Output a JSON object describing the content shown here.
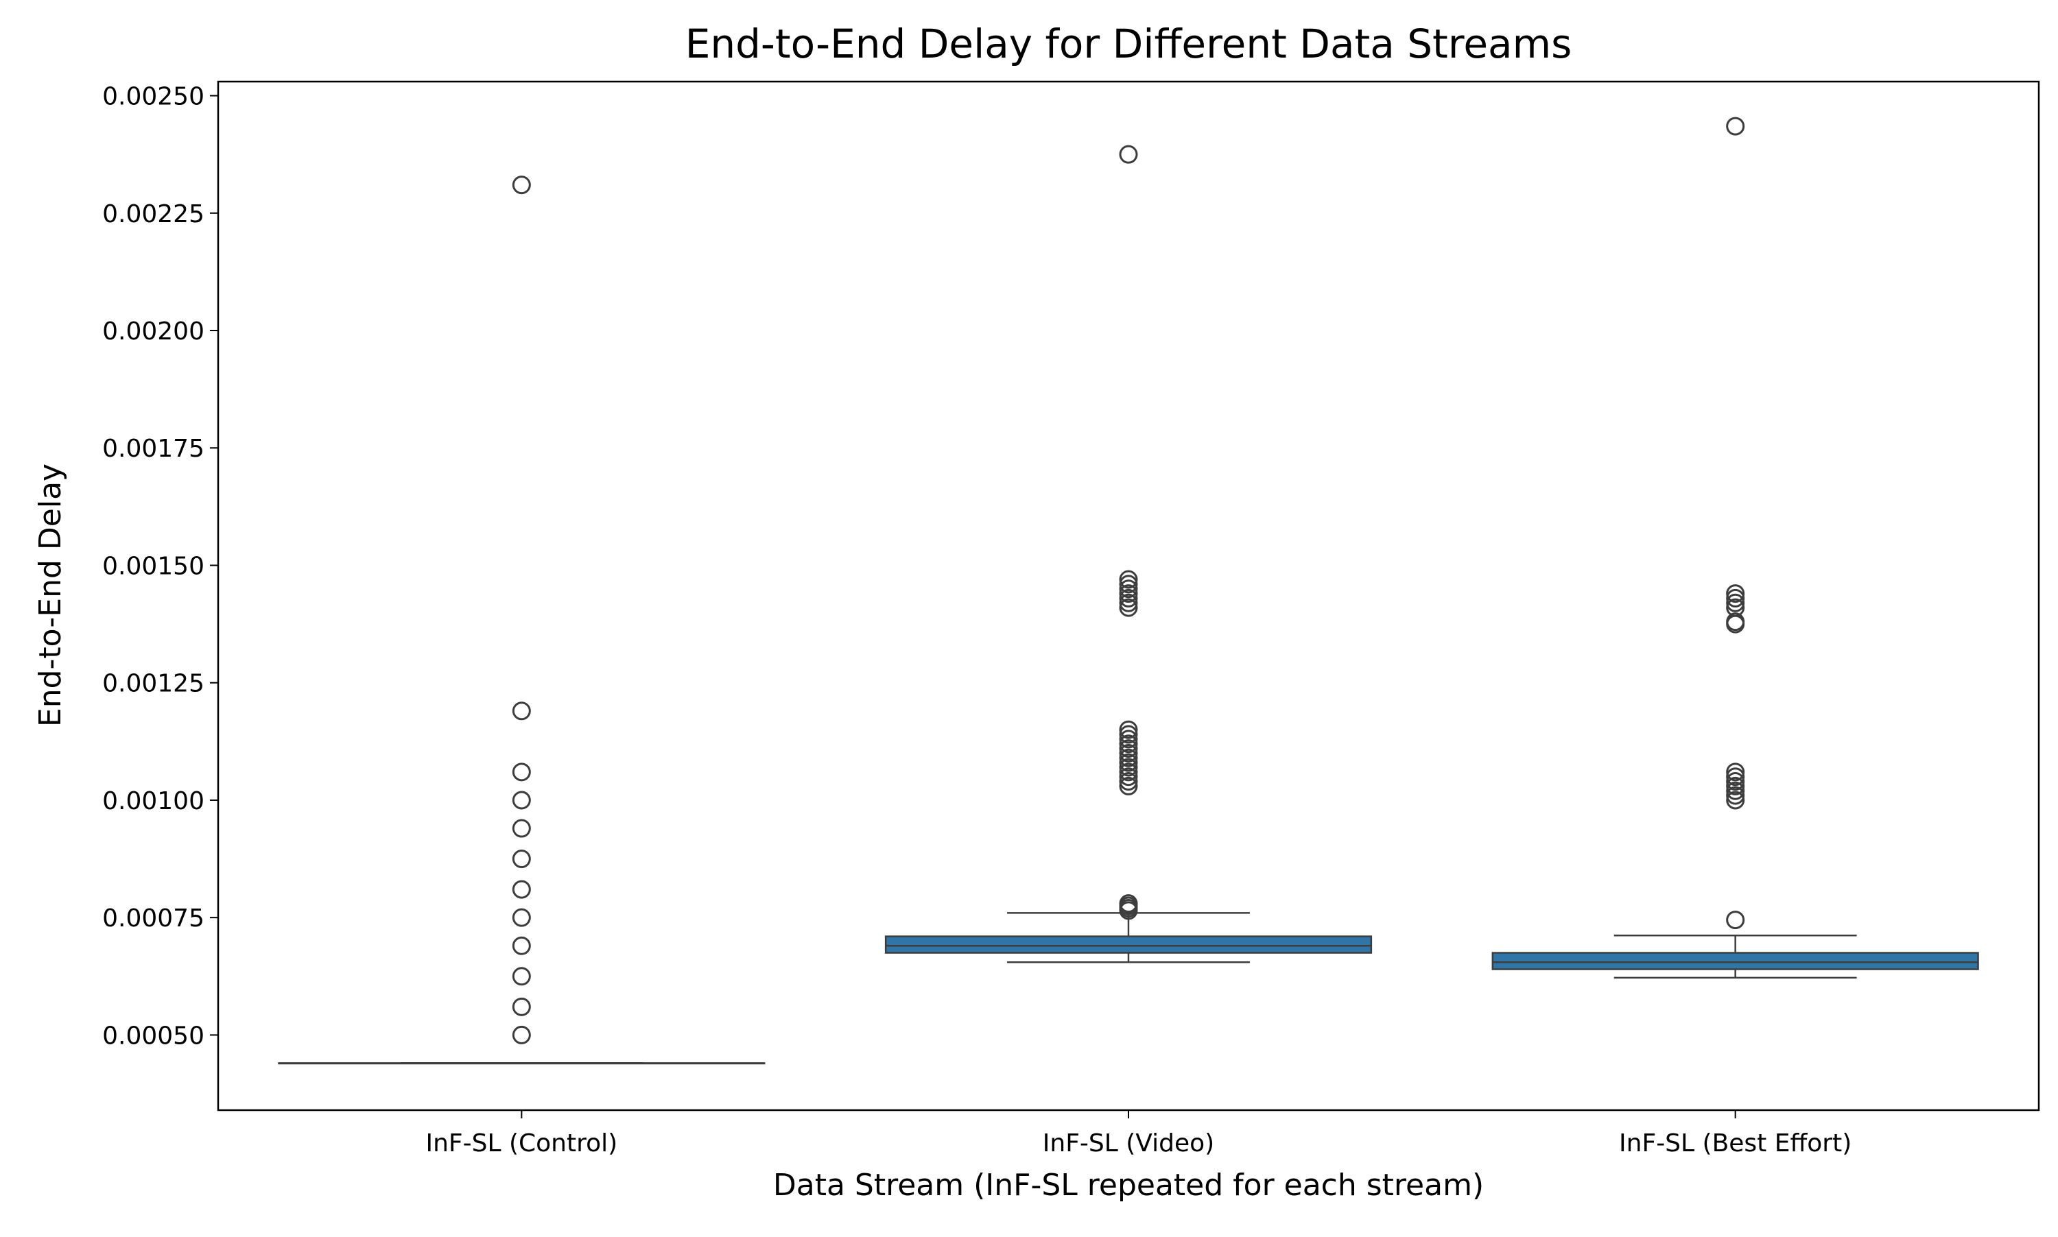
{
  "chart_data": {
    "type": "box",
    "title": "End-to-End Delay for Different Data Streams",
    "xlabel": "Data Stream (InF-SL repeated for each stream)",
    "ylabel": "End-to-End Delay",
    "ylim": [
      0.00034,
      0.00253
    ],
    "yticks": [
      0.0005,
      0.00075,
      0.001,
      0.00125,
      0.0015,
      0.00175,
      0.002,
      0.00225,
      0.0025
    ],
    "ytick_labels": [
      "0.00050",
      "0.00075",
      "0.00100",
      "0.00125",
      "0.00150",
      "0.00175",
      "0.00200",
      "0.00225",
      "0.00250"
    ],
    "categories": [
      "InF-SL (Control)",
      "InF-SL (Video)",
      "InF-SL (Best Effort)"
    ],
    "grid": false,
    "legend": "none",
    "box_color": "#2f75a8",
    "series": [
      {
        "category": "InF-SL (Control)",
        "whisker_low": 0.00044,
        "q1": 0.00044,
        "median": 0.00044,
        "q3": 0.00044,
        "whisker_high": 0.00044,
        "outliers": [
          0.0005,
          0.00056,
          0.000625,
          0.00069,
          0.00075,
          0.00081,
          0.000875,
          0.00094,
          0.001,
          0.00106,
          0.00119,
          0.00231
        ]
      },
      {
        "category": "InF-SL (Video)",
        "whisker_low": 0.000655,
        "q1": 0.000675,
        "median": 0.00069,
        "q3": 0.00071,
        "whisker_high": 0.00076,
        "outliers": [
          0.000765,
          0.00077,
          0.000775,
          0.00078,
          0.00103,
          0.00104,
          0.00105,
          0.00106,
          0.00107,
          0.00108,
          0.00109,
          0.0011,
          0.00111,
          0.00112,
          0.00113,
          0.00114,
          0.00115,
          0.00141,
          0.00142,
          0.00143,
          0.00144,
          0.00145,
          0.00146,
          0.00147,
          0.002375
        ]
      },
      {
        "category": "InF-SL (Best Effort)",
        "whisker_low": 0.000622,
        "q1": 0.00064,
        "median": 0.000655,
        "q3": 0.000675,
        "whisker_high": 0.000712,
        "outliers": [
          0.000745,
          0.001,
          0.00101,
          0.00102,
          0.00103,
          0.00104,
          0.00105,
          0.00106,
          0.001375,
          0.00138,
          0.00141,
          0.00142,
          0.00143,
          0.00144,
          0.002435
        ]
      }
    ]
  }
}
